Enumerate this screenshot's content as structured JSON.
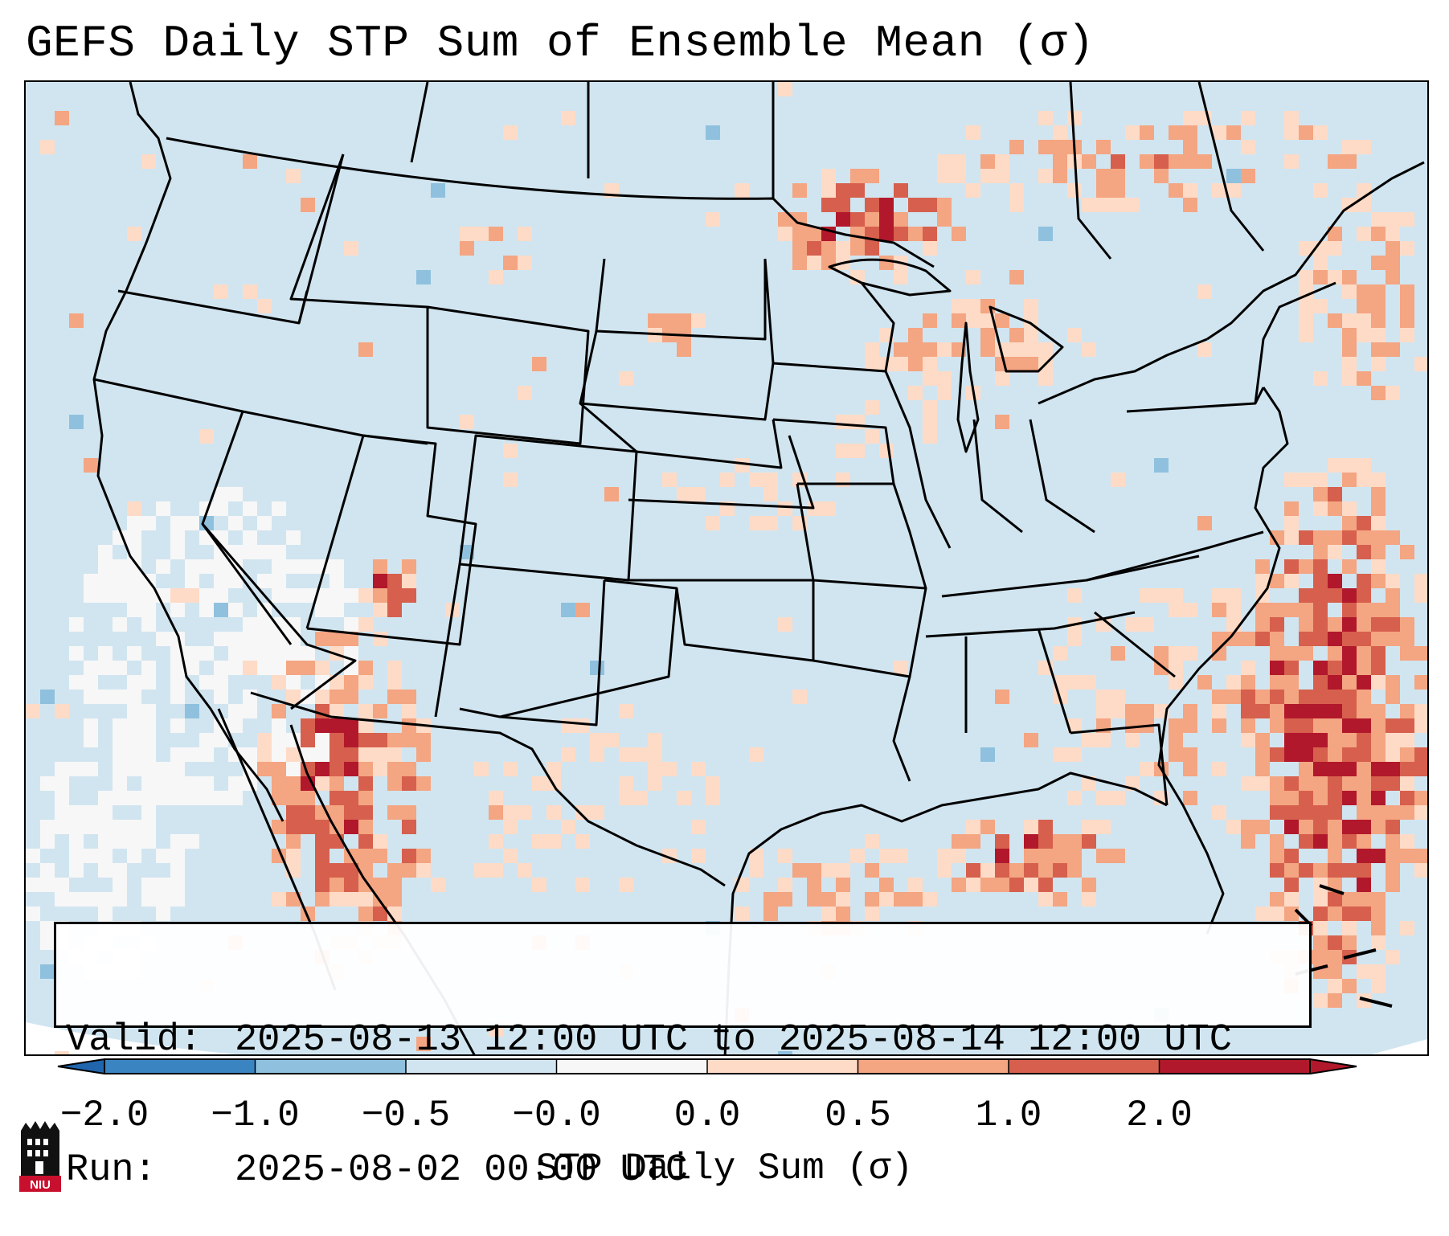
{
  "title": "GEFS Daily STP Sum of Ensemble Mean (σ)",
  "info": {
    "valid_label": "Valid:",
    "valid_value": "2025-08-13 12:00 UTC to 2025-08-14 12:00 UTC",
    "run_label": "Run:",
    "run_value": "2025-08-02 00:00 UTC"
  },
  "colorbar": {
    "label": "STP Daily Sum (σ)",
    "ticks": [
      "−2.0",
      "−1.0",
      "−0.5",
      "−0.0",
      "0.0",
      "0.5",
      "1.0",
      "2.0"
    ],
    "colors": [
      "#3b84c2",
      "#8fc1de",
      "#d1e5f0",
      "#f7f7f7",
      "#fddbc7",
      "#f4a582",
      "#d6604d",
      "#b2182b"
    ],
    "extend_low_color": "#2166ac",
    "extend_high_color": "#b2182b"
  },
  "map": {
    "ocean_color": "#d1e5f0",
    "land_color": "#d1e5f0",
    "border_color": "#000000"
  },
  "logo": {
    "text": "NIU",
    "color": "#c8102e"
  }
}
